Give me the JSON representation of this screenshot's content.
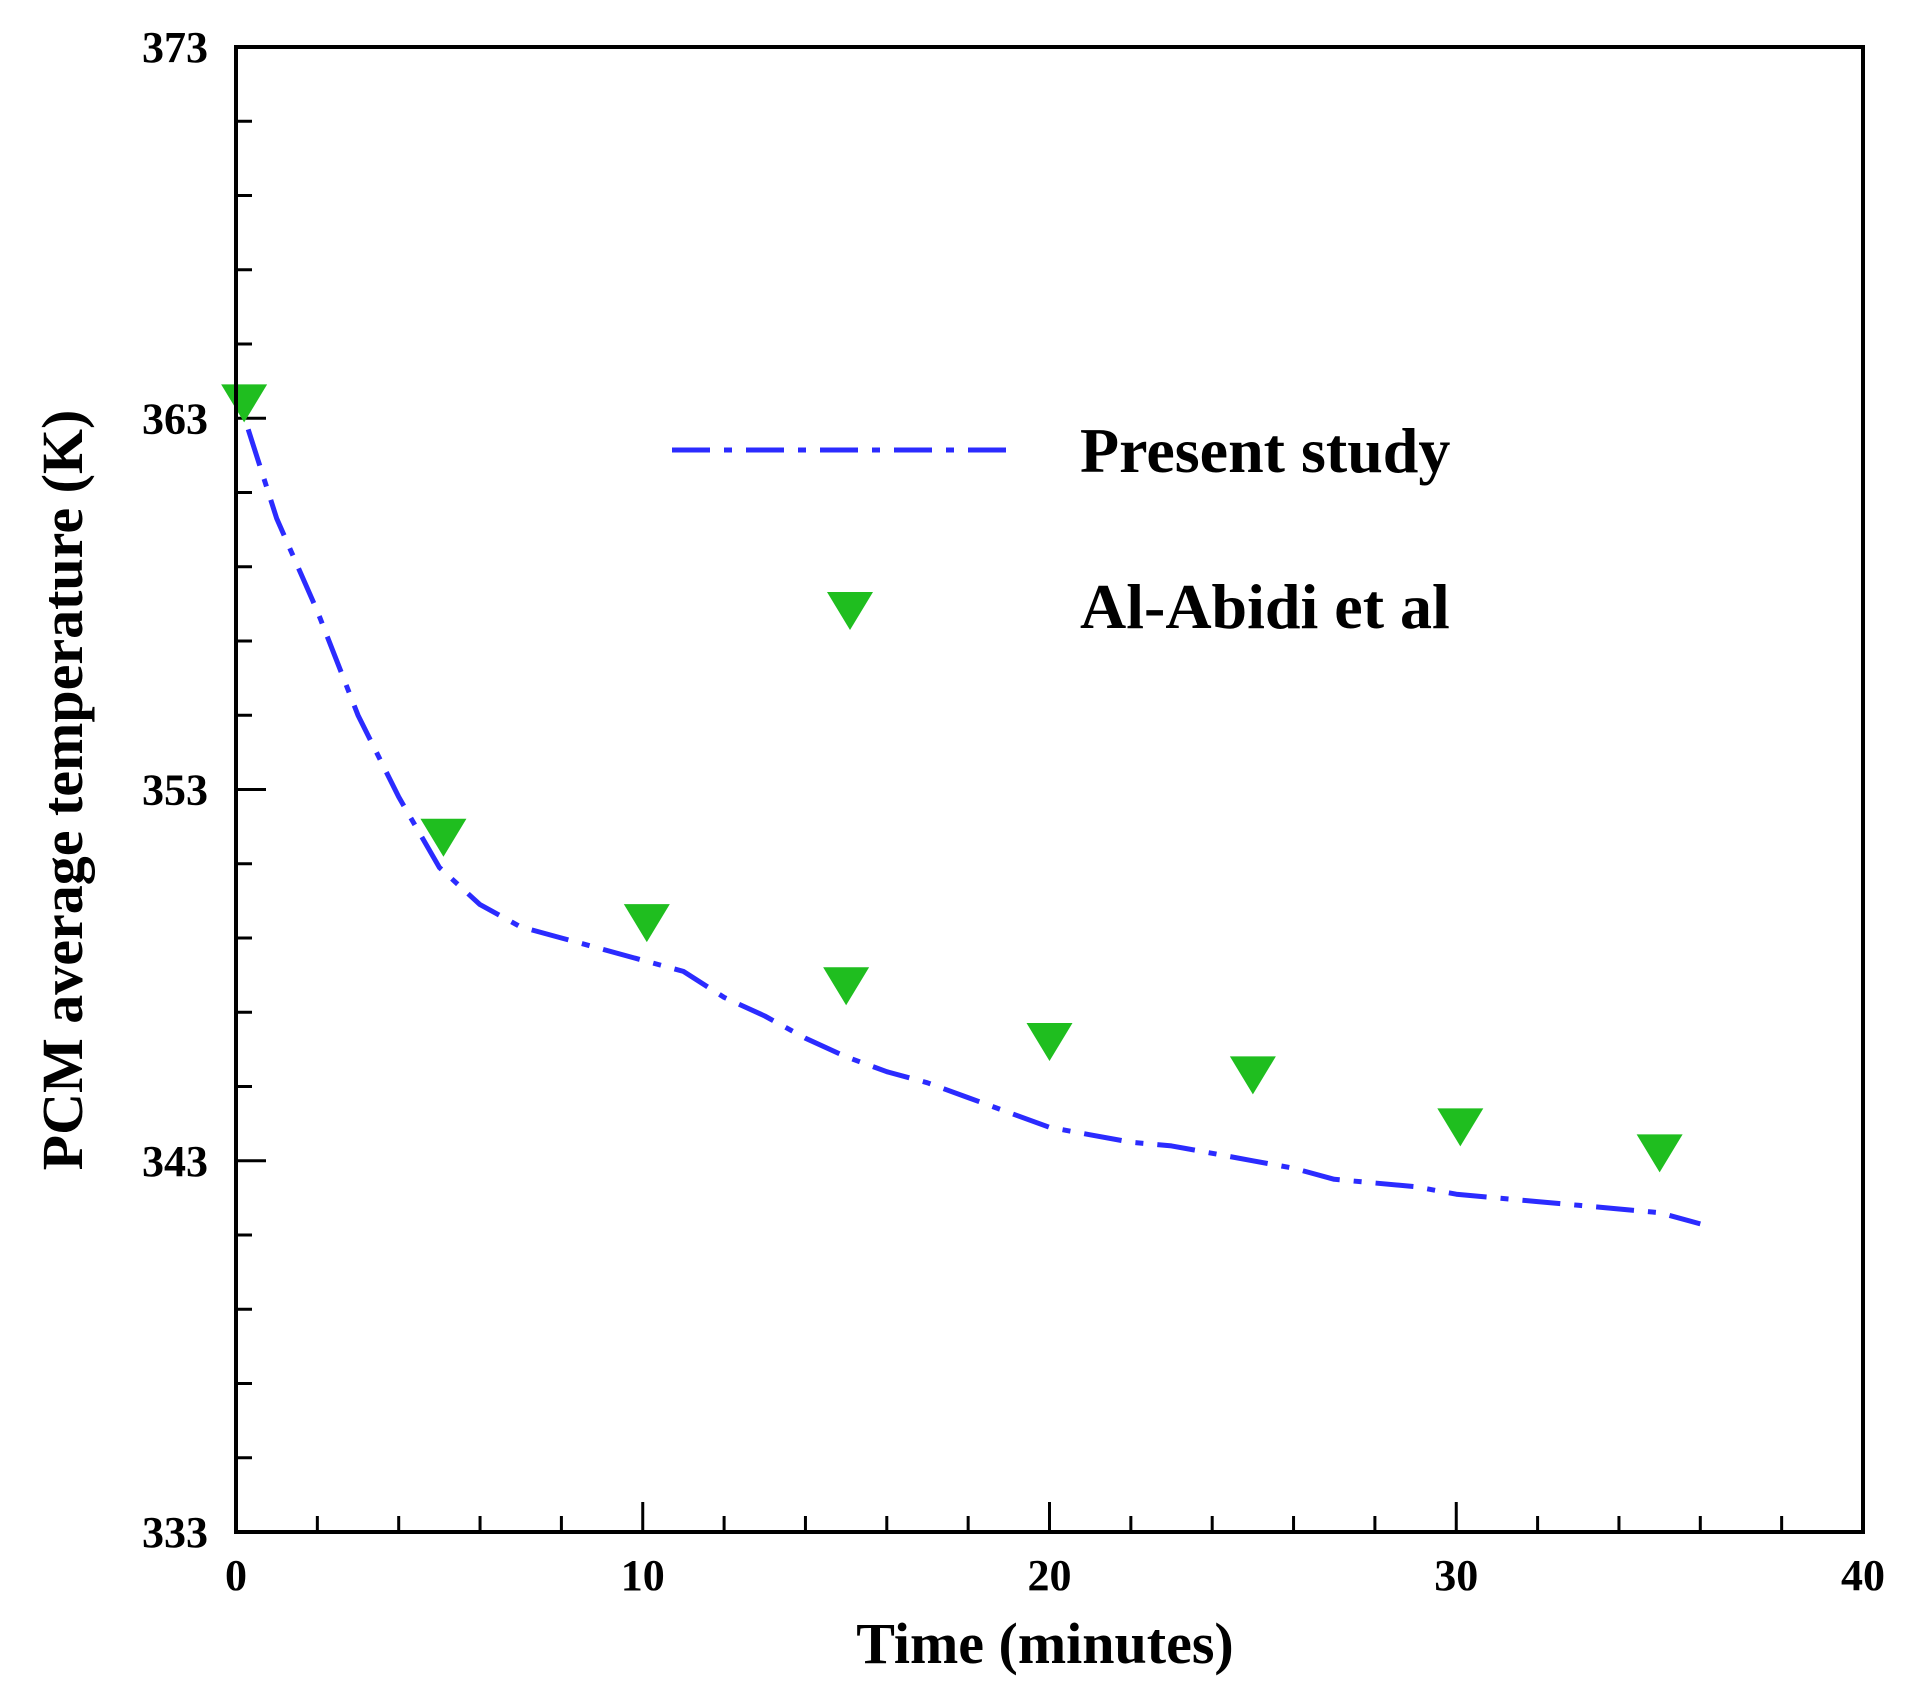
{
  "chart_data": {
    "type": "line",
    "title": "",
    "xlabel": "Time (minutes)",
    "ylabel": "PCM average temperature (K)",
    "xlim": [
      0,
      40
    ],
    "ylim": [
      333,
      373
    ],
    "x_major_ticks": [
      0,
      10,
      20,
      30,
      40
    ],
    "x_minor_step": 2,
    "y_major_ticks": [
      333,
      343,
      353,
      363,
      373
    ],
    "y_minor_step": 2,
    "x_tick_labels": [
      "0",
      "10",
      "20",
      "30",
      "40"
    ],
    "y_tick_labels": [
      "333",
      "343",
      "353",
      "363",
      "373"
    ],
    "grid": false,
    "legend_position": "top-right",
    "series": [
      {
        "name": "Present study",
        "style": "dash-dot-line",
        "color": "#2b2bff",
        "x": [
          0.3,
          1,
          2,
          3,
          4,
          5,
          6,
          7,
          8,
          9,
          10,
          11,
          12,
          13,
          14,
          15,
          16,
          17,
          18,
          19,
          20,
          21,
          22,
          23,
          24,
          25,
          26,
          27,
          28,
          29,
          30,
          31,
          32,
          33,
          34,
          35,
          36
        ],
        "y": [
          362.7,
          360.3,
          357.8,
          355.0,
          352.8,
          350.9,
          349.9,
          349.3,
          349.0,
          348.7,
          348.4,
          348.1,
          347.4,
          346.9,
          346.3,
          345.8,
          345.4,
          345.1,
          344.7,
          344.3,
          343.9,
          343.7,
          343.5,
          343.4,
          343.2,
          343.0,
          342.8,
          342.5,
          342.4,
          342.3,
          342.1,
          342.0,
          341.9,
          341.8,
          341.7,
          341.6,
          341.3
        ]
      },
      {
        "name": "Al-Abidi et al",
        "style": "marker-triangle-down",
        "color": "#1fbe1f",
        "x": [
          0.2,
          5.1,
          10.1,
          15.0,
          20.0,
          25.0,
          30.1,
          35.0
        ],
        "y": [
          363.4,
          351.7,
          349.4,
          347.7,
          346.2,
          345.3,
          343.9,
          343.2
        ]
      }
    ]
  }
}
